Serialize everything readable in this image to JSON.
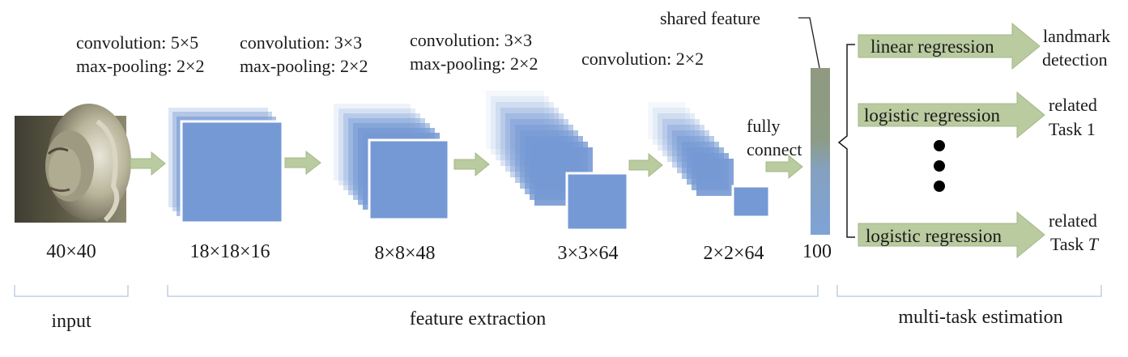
{
  "stages": [
    {
      "ops": [
        "convolution: 5×5",
        "max-pooling: 2×2"
      ],
      "dim": "18×18×16"
    },
    {
      "ops": [
        "convolution: 3×3",
        "max-pooling: 2×2"
      ],
      "dim": "8×8×48"
    },
    {
      "ops": [
        "convolution: 3×3",
        "max-pooling: 2×2"
      ],
      "dim": "3×3×64"
    },
    {
      "ops": [
        "convolution: 2×2"
      ],
      "dim": "2×2×64"
    }
  ],
  "input": {
    "dim": "40×40",
    "group_label": "input"
  },
  "fully_connect": [
    "fully",
    "connect"
  ],
  "shared_feature": {
    "label": "shared feature",
    "dim": "100"
  },
  "feature_extraction": "feature extraction",
  "multi_task_estimation": "multi-task estimation",
  "tasks": [
    {
      "method": "linear regression",
      "target": [
        "landmark",
        "detection"
      ]
    },
    {
      "method": "logistic regression",
      "target": [
        "related",
        "Task 1"
      ]
    },
    {
      "method": "logistic regression",
      "target": [
        "related",
        "Task "
      ],
      "target_italic": "T"
    }
  ],
  "colors": {
    "map_fill": "#7599d4",
    "arrow_fill": "#b9cb9f",
    "arrow_stroke": "#a3b88a",
    "bracket": "#b5c8de",
    "fc_top": "#8f9a80",
    "fc_bottom": "#7fa3d6"
  }
}
